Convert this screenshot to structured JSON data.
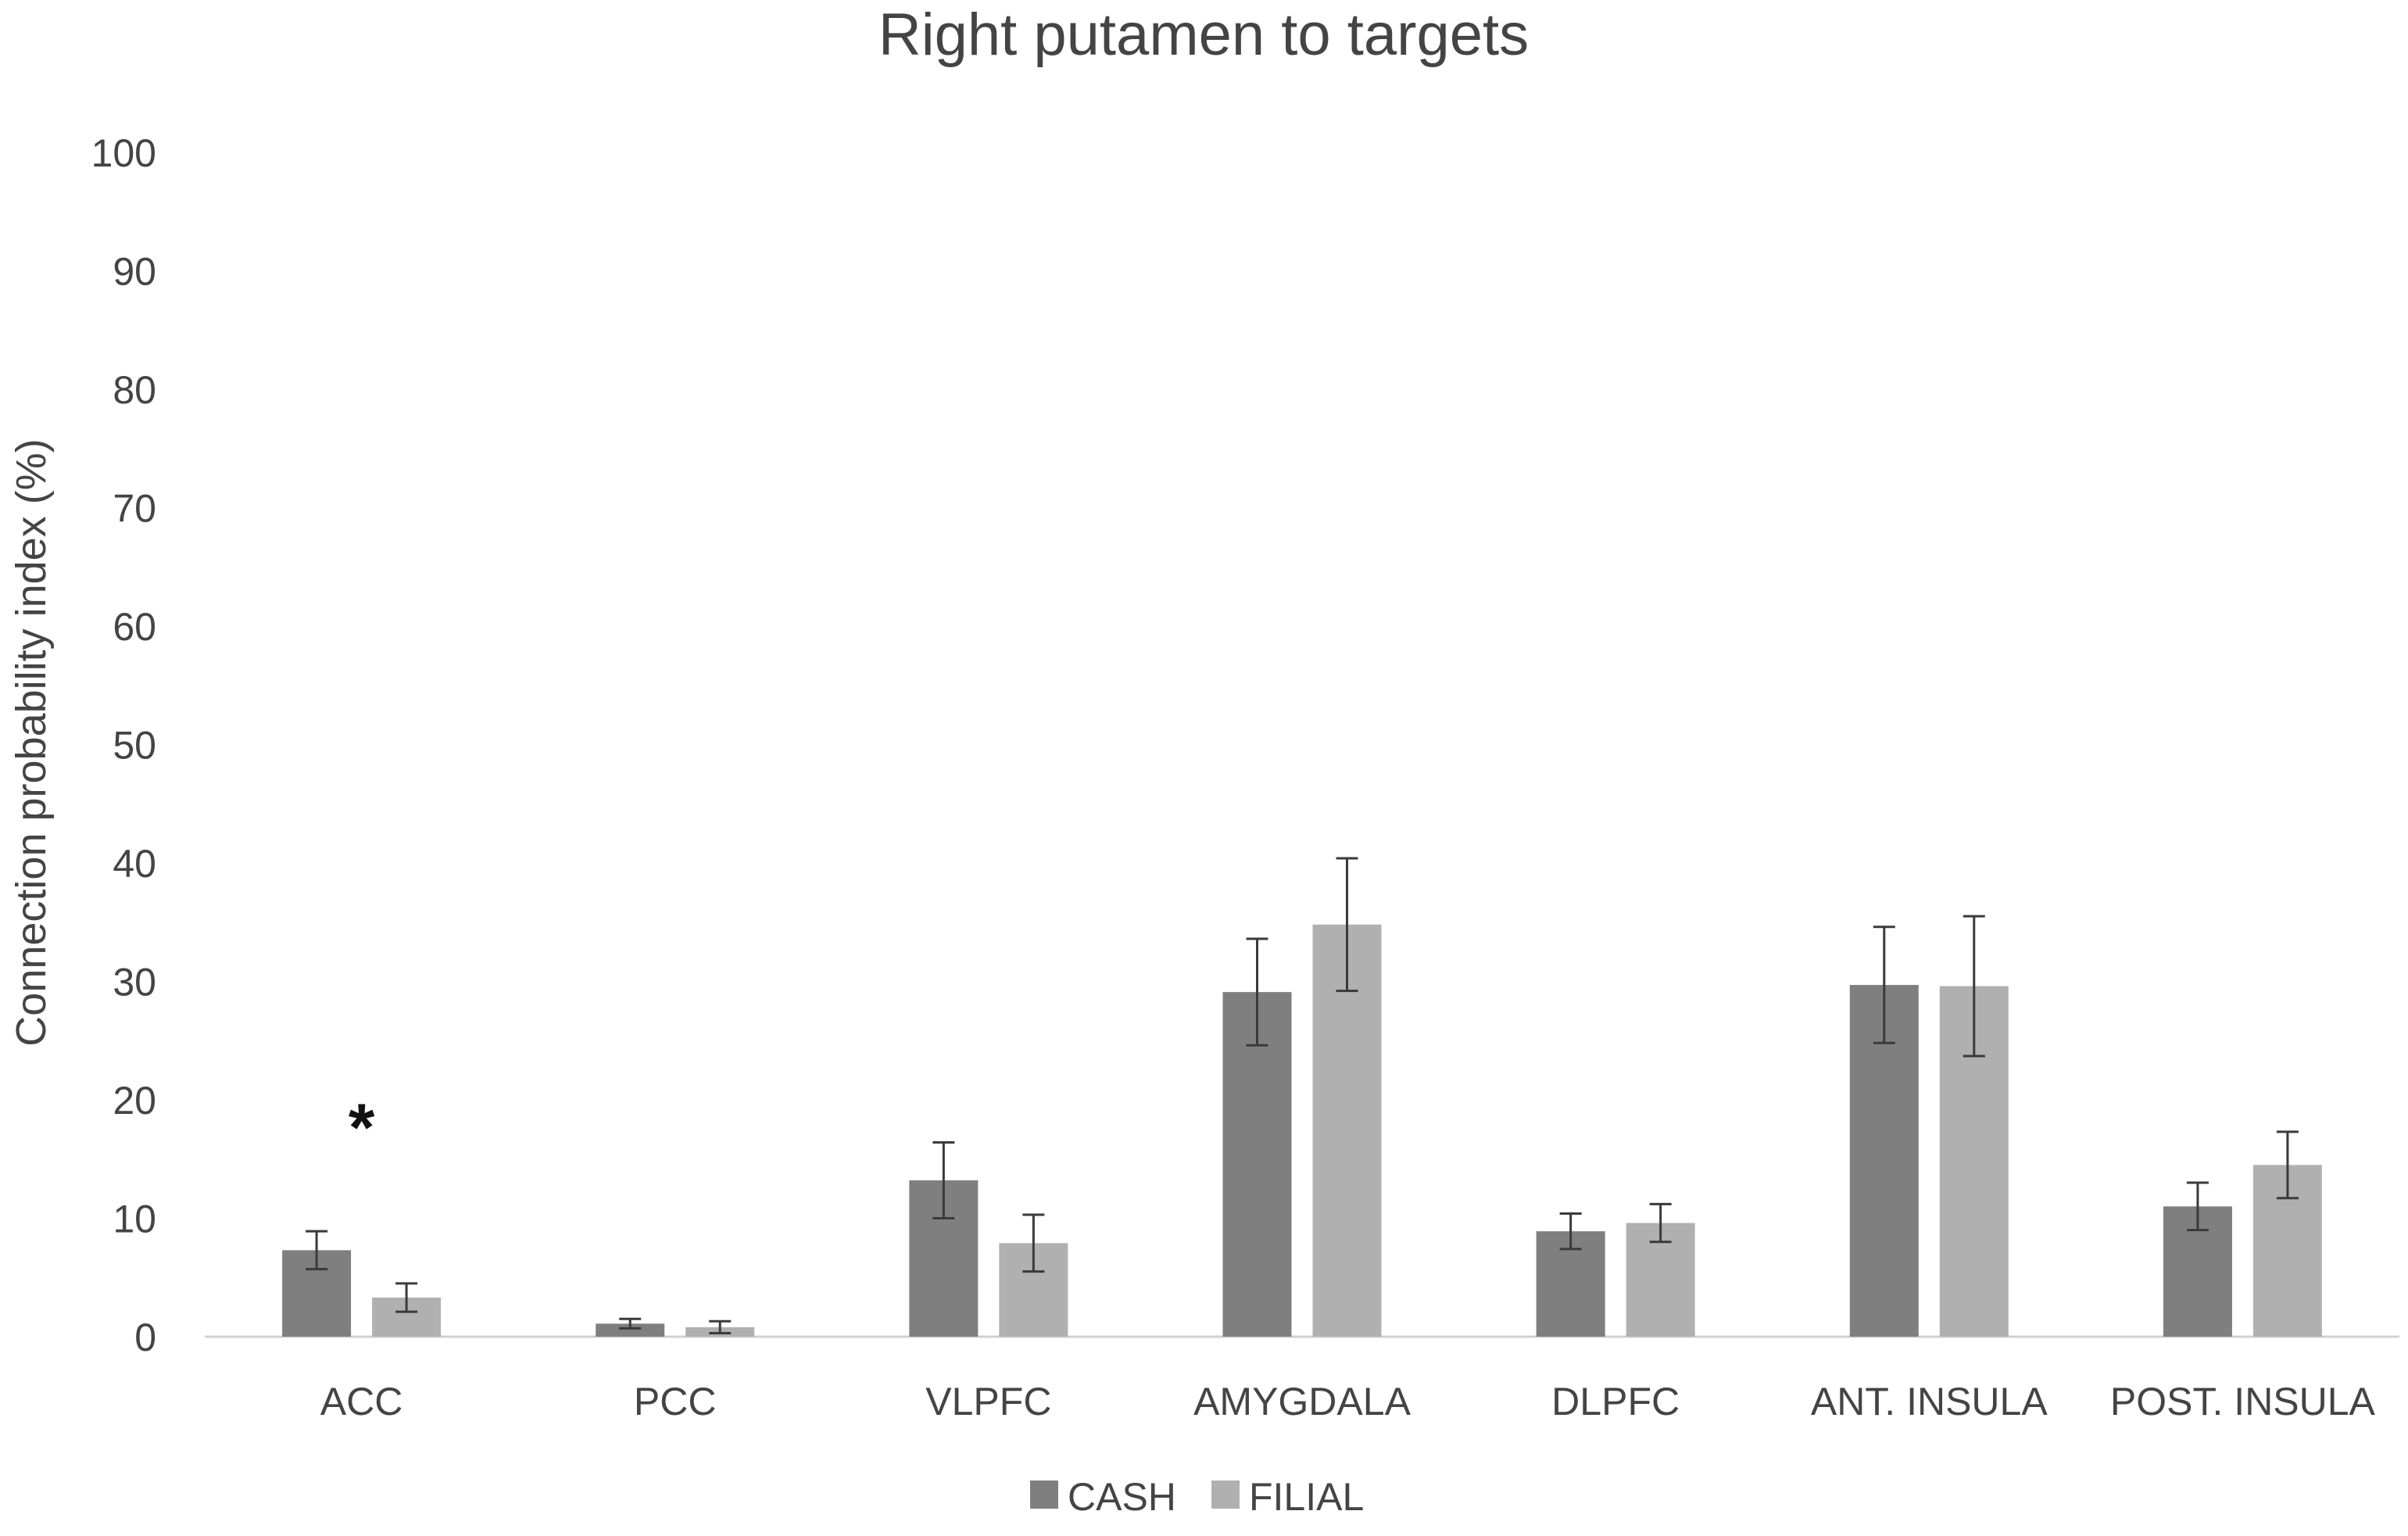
{
  "chart_data": {
    "type": "bar",
    "title": "Right putamen to targets",
    "xlabel": "",
    "ylabel": "Connection probability index (%)",
    "ylim": [
      0,
      100
    ],
    "yticks": [
      0,
      10,
      20,
      30,
      40,
      50,
      60,
      70,
      80,
      90,
      100
    ],
    "categories": [
      "ACC",
      "PCC",
      "VLPFC",
      "AMYGDALA",
      "DLPFC",
      "ANT. INSULA",
      "POST. INSULA"
    ],
    "series": [
      {
        "name": "CASH",
        "color": "#7f7f7f",
        "values": [
          7.3,
          1.1,
          13.2,
          29.1,
          8.9,
          29.7,
          11.0
        ],
        "errors": [
          1.6,
          0.4,
          3.2,
          4.5,
          1.5,
          4.9,
          2.0
        ]
      },
      {
        "name": "FILIAL",
        "color": "#b0b0b0",
        "values": [
          3.3,
          0.8,
          7.9,
          34.8,
          9.6,
          29.6,
          14.5
        ],
        "errors": [
          1.2,
          0.5,
          2.4,
          5.6,
          1.6,
          5.9,
          2.8
        ]
      }
    ],
    "annotations": [
      {
        "text": "*",
        "category": "ACC",
        "value": 19
      }
    ],
    "grid": false,
    "legend_position": "bottom-center"
  }
}
